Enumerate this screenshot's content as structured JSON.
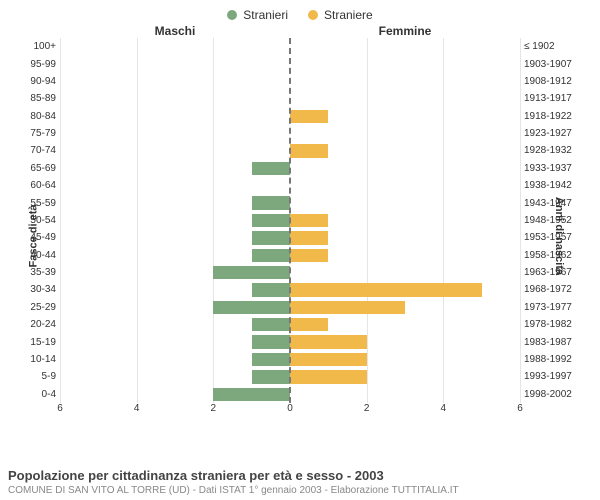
{
  "legend": [
    {
      "label": "Stranieri",
      "color": "#7da87d"
    },
    {
      "label": "Straniere",
      "color": "#f1b94a"
    }
  ],
  "headers": {
    "left": "Maschi",
    "right": "Femmine"
  },
  "axis_titles": {
    "left": "Fasce di età",
    "right": "Anni di nascita"
  },
  "chart": {
    "type": "population-pyramid",
    "x_max": 6,
    "x_ticks": [
      6,
      4,
      2,
      0,
      2,
      4,
      6
    ],
    "male_color": "#7da87d",
    "female_color": "#f1b94a",
    "background_color": "#ffffff",
    "grid_color": "#e5e5e5",
    "rows": [
      {
        "age": "100+",
        "birth": "≤ 1902",
        "m": 0,
        "f": 0
      },
      {
        "age": "95-99",
        "birth": "1903-1907",
        "m": 0,
        "f": 0
      },
      {
        "age": "90-94",
        "birth": "1908-1912",
        "m": 0,
        "f": 0
      },
      {
        "age": "85-89",
        "birth": "1913-1917",
        "m": 0,
        "f": 0
      },
      {
        "age": "80-84",
        "birth": "1918-1922",
        "m": 0,
        "f": 1
      },
      {
        "age": "75-79",
        "birth": "1923-1927",
        "m": 0,
        "f": 0
      },
      {
        "age": "70-74",
        "birth": "1928-1932",
        "m": 0,
        "f": 1
      },
      {
        "age": "65-69",
        "birth": "1933-1937",
        "m": 1,
        "f": 0
      },
      {
        "age": "60-64",
        "birth": "1938-1942",
        "m": 0,
        "f": 0
      },
      {
        "age": "55-59",
        "birth": "1943-1947",
        "m": 1,
        "f": 0
      },
      {
        "age": "50-54",
        "birth": "1948-1952",
        "m": 1,
        "f": 1
      },
      {
        "age": "45-49",
        "birth": "1953-1957",
        "m": 1,
        "f": 1
      },
      {
        "age": "40-44",
        "birth": "1958-1962",
        "m": 1,
        "f": 1
      },
      {
        "age": "35-39",
        "birth": "1963-1967",
        "m": 2,
        "f": 0
      },
      {
        "age": "30-34",
        "birth": "1968-1972",
        "m": 1,
        "f": 5
      },
      {
        "age": "25-29",
        "birth": "1973-1977",
        "m": 2,
        "f": 3
      },
      {
        "age": "20-24",
        "birth": "1978-1982",
        "m": 1,
        "f": 1
      },
      {
        "age": "15-19",
        "birth": "1983-1987",
        "m": 1,
        "f": 2
      },
      {
        "age": "10-14",
        "birth": "1988-1992",
        "m": 1,
        "f": 2
      },
      {
        "age": "5-9",
        "birth": "1993-1997",
        "m": 1,
        "f": 2
      },
      {
        "age": "0-4",
        "birth": "1998-2002",
        "m": 2,
        "f": 0
      }
    ]
  },
  "footer": {
    "title": "Popolazione per cittadinanza straniera per età e sesso - 2003",
    "subtitle": "COMUNE DI SAN VITO AL TORRE (UD) - Dati ISTAT 1° gennaio 2003 - Elaborazione TUTTITALIA.IT"
  }
}
